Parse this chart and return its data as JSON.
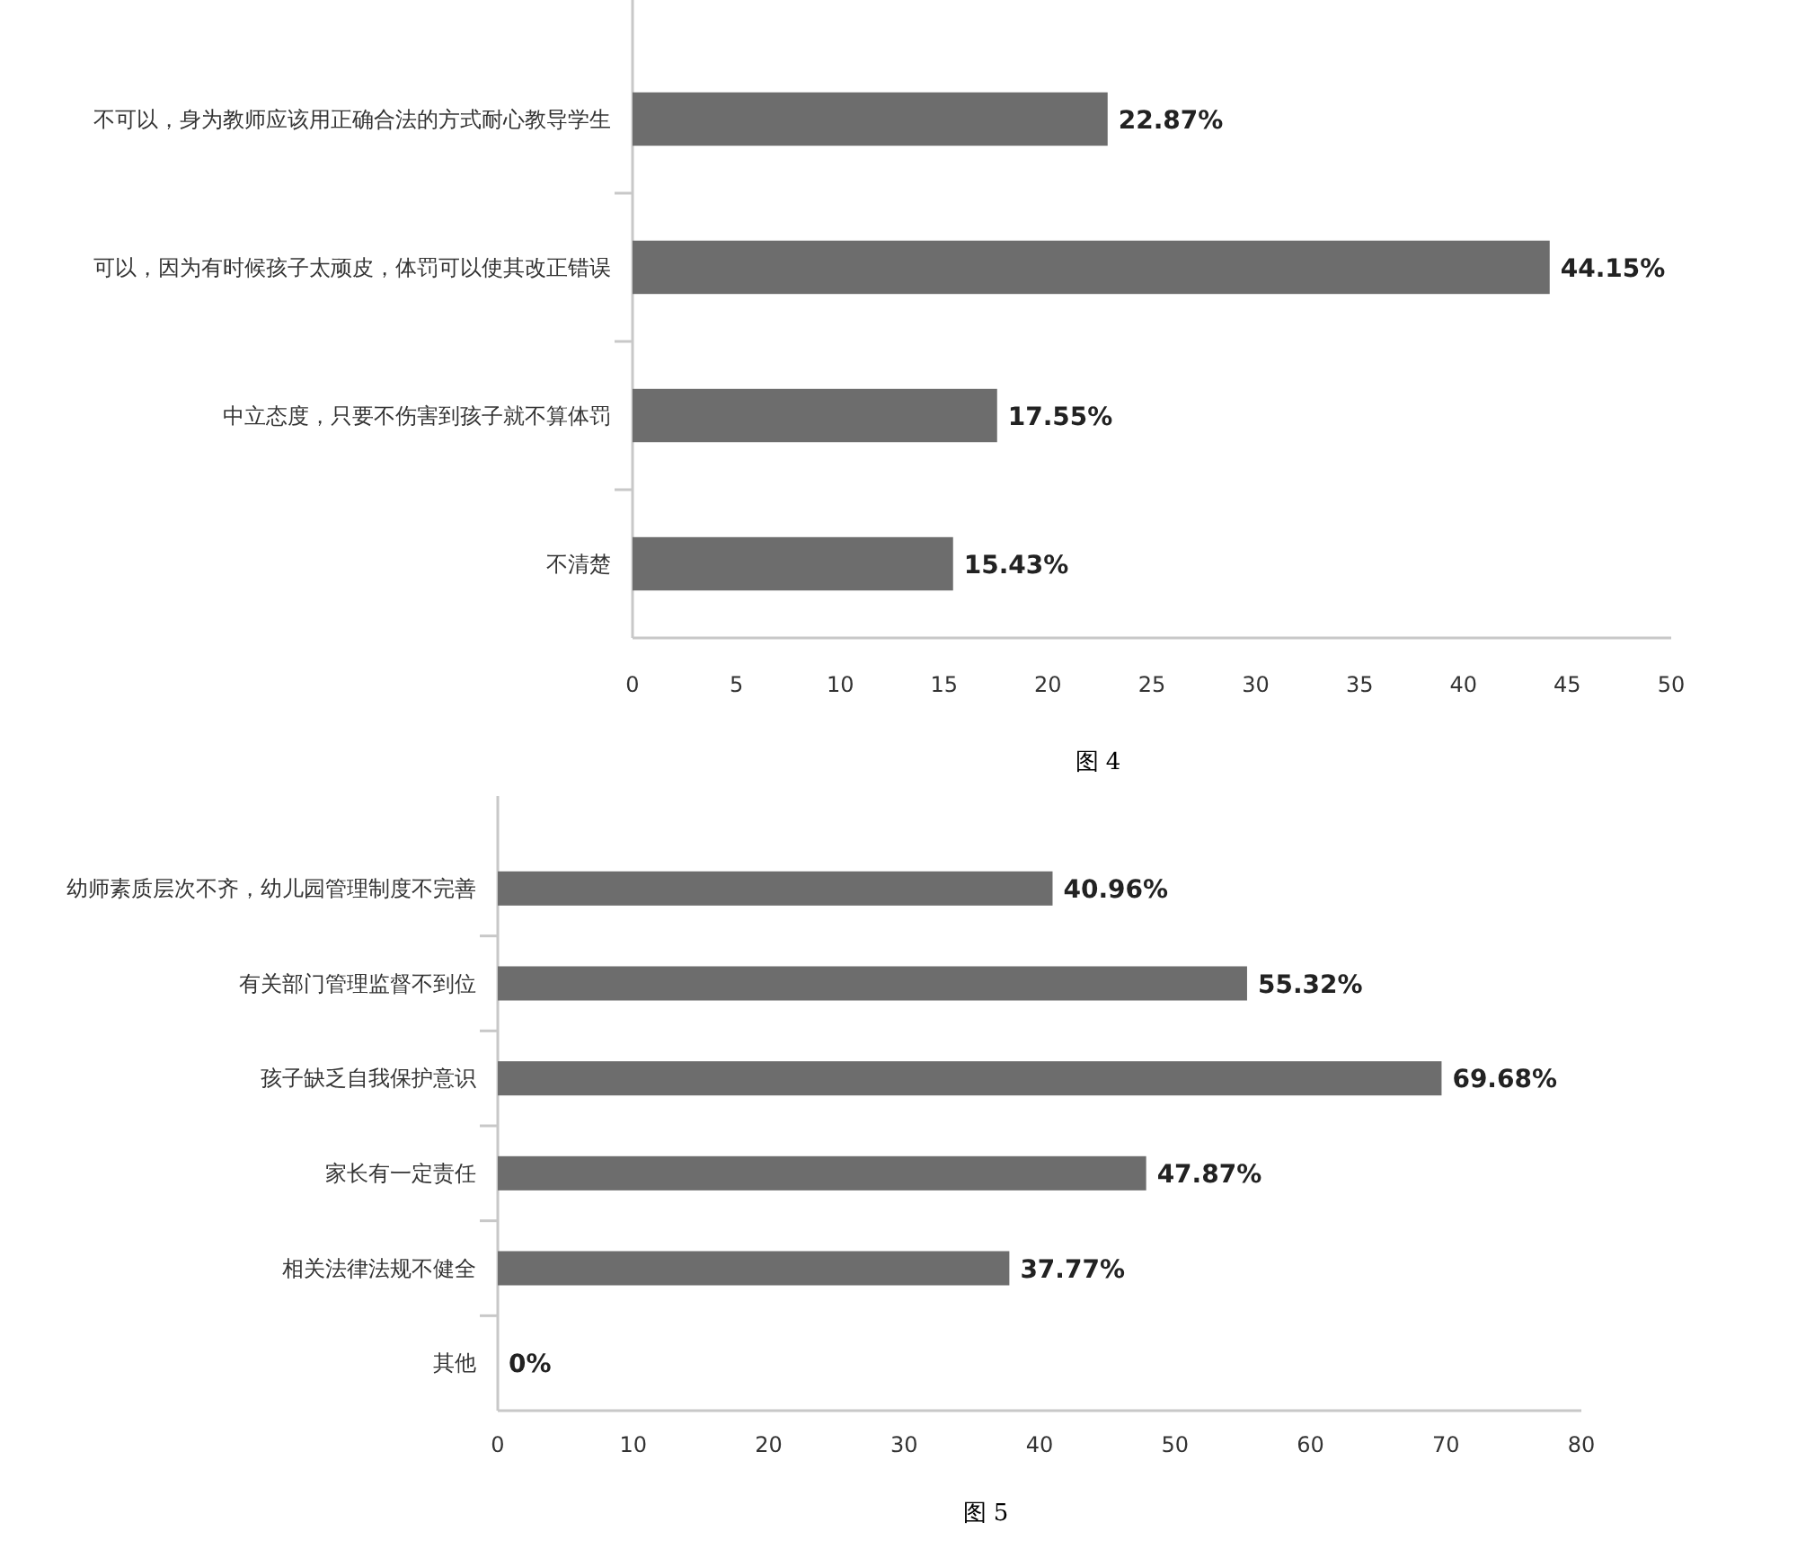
{
  "chart_data": [
    {
      "type": "bar",
      "orientation": "horizontal",
      "categories": [
        "不可以，身为教师应该用正确合法的方式耐心教导学生",
        "可以，因为有时候孩子太顽皮，体罚可以使其改正错误",
        "中立态度，只要不伤害到孩子就不算体罚",
        "不清楚"
      ],
      "values": [
        22.87,
        44.15,
        17.55,
        15.43
      ],
      "value_labels": [
        "22.87%",
        "44.15%",
        "17.55%",
        "15.43%"
      ],
      "color": "#6d6d6d",
      "xlim": [
        0,
        50
      ],
      "xticks": [
        0,
        5,
        10,
        15,
        20,
        25,
        30,
        35,
        40,
        45,
        50
      ],
      "grid": false,
      "annotations": [
        "图 4"
      ]
    },
    {
      "type": "bar",
      "orientation": "horizontal",
      "categories": [
        "幼师素质层次不齐，幼儿园管理制度不完善",
        "有关部门管理监督不到位",
        "孩子缺乏自我保护意识",
        "家长有一定责任",
        "相关法律法规不健全",
        "其他"
      ],
      "values": [
        40.96,
        55.32,
        69.68,
        47.87,
        37.77,
        0
      ],
      "value_labels": [
        "40.96%",
        "55.32%",
        "69.68%",
        "47.87%",
        "37.77%",
        "0%"
      ],
      "color": "#6d6d6d",
      "xlim": [
        0,
        80
      ],
      "xticks": [
        0,
        10,
        20,
        30,
        40,
        50,
        60,
        70,
        80
      ],
      "grid": false,
      "annotations": [
        "图 5"
      ]
    }
  ]
}
